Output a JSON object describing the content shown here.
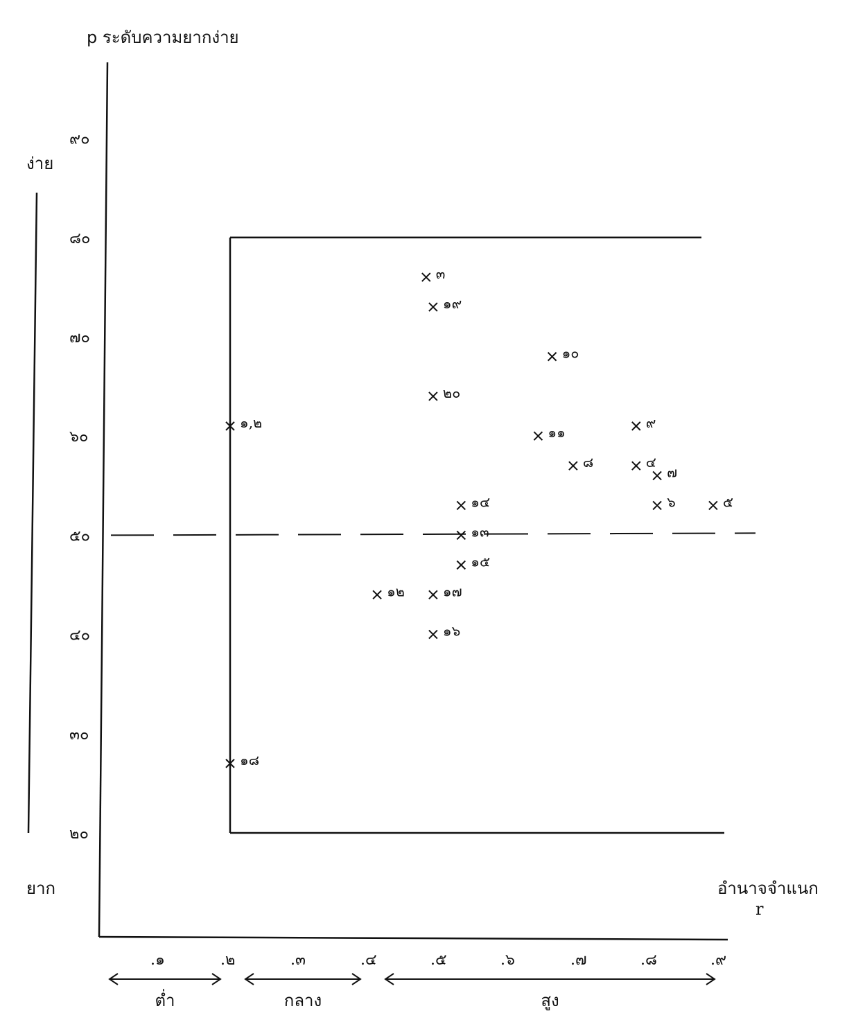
{
  "chart_data": {
    "type": "scatter",
    "title": "p ระดับความยากง่าย",
    "ylabel": "p ระดับความยากง่าย",
    "xlabel": "อำนาจจำแนก",
    "xlabel_symbol": "r",
    "y_scale_labels": {
      "top": "ง่าย",
      "bottom": "ยาก"
    },
    "xlim": [
      0.0,
      0.9
    ],
    "ylim": [
      10,
      95
    ],
    "y_ticks": [
      {
        "value": 20,
        "label": "๒๐"
      },
      {
        "value": 30,
        "label": "๓๐"
      },
      {
        "value": 40,
        "label": "๔๐"
      },
      {
        "value": 50,
        "label": "๕๐"
      },
      {
        "value": 60,
        "label": "๖๐"
      },
      {
        "value": 70,
        "label": "๗๐"
      },
      {
        "value": 80,
        "label": "๘๐"
      },
      {
        "value": 90,
        "label": "๙๐"
      }
    ],
    "x_ticks": [
      {
        "value": 0.1,
        "label": ".๑"
      },
      {
        "value": 0.2,
        "label": ".๒"
      },
      {
        "value": 0.3,
        "label": ".๓"
      },
      {
        "value": 0.4,
        "label": ".๔"
      },
      {
        "value": 0.5,
        "label": ".๕"
      },
      {
        "value": 0.6,
        "label": ".๖"
      },
      {
        "value": 0.7,
        "label": ".๗"
      },
      {
        "value": 0.8,
        "label": ".๘"
      },
      {
        "value": 0.9,
        "label": ".๙"
      }
    ],
    "ranges": [
      {
        "label": "ต่ำ",
        "from": 0.0,
        "to": 0.2
      },
      {
        "label": "กลาง",
        "from": 0.2,
        "to": 0.4
      },
      {
        "label": "สูง",
        "from": 0.4,
        "to": 0.9
      }
    ],
    "criterion_box": {
      "r_min": 0.2,
      "p_min": 20,
      "p_max": 80
    },
    "reference_line_p": 50,
    "grid": false,
    "points": [
      {
        "label": "๓",
        "r": 0.48,
        "p": 76
      },
      {
        "label": "๑๙",
        "r": 0.49,
        "p": 73
      },
      {
        "label": "๑๐",
        "r": 0.66,
        "p": 68
      },
      {
        "label": "๒๐",
        "r": 0.49,
        "p": 64
      },
      {
        "label": "๑,๒",
        "r": 0.2,
        "p": 61
      },
      {
        "label": "๙",
        "r": 0.78,
        "p": 61
      },
      {
        "label": "๑๑",
        "r": 0.64,
        "p": 60
      },
      {
        "label": "๘",
        "r": 0.69,
        "p": 57
      },
      {
        "label": "๔",
        "r": 0.78,
        "p": 57
      },
      {
        "label": "๗",
        "r": 0.81,
        "p": 56
      },
      {
        "label": "๑๔",
        "r": 0.53,
        "p": 53
      },
      {
        "label": "๖",
        "r": 0.81,
        "p": 53
      },
      {
        "label": "๕",
        "r": 0.89,
        "p": 53
      },
      {
        "label": "๑๓",
        "r": 0.53,
        "p": 50
      },
      {
        "label": "๑๕",
        "r": 0.53,
        "p": 47
      },
      {
        "label": "๑๗",
        "r": 0.49,
        "p": 44
      },
      {
        "label": "๑๒",
        "r": 0.41,
        "p": 44
      },
      {
        "label": "๑๖",
        "r": 0.49,
        "p": 40
      },
      {
        "label": "๑๘",
        "r": 0.2,
        "p": 27
      }
    ]
  }
}
